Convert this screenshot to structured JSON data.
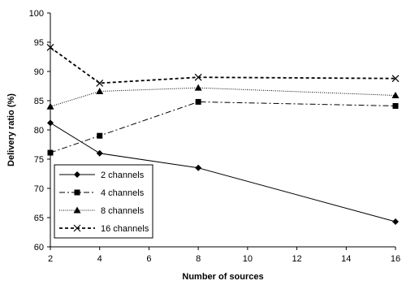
{
  "chart_data": {
    "type": "line",
    "title": "",
    "xlabel": "Number of sources",
    "ylabel": "Delivery ratio (%)",
    "xlim": [
      2,
      16
    ],
    "ylim": [
      60,
      100
    ],
    "x_ticks": [
      "2",
      "4",
      "6",
      "8",
      "10",
      "12",
      "14",
      "16"
    ],
    "y_ticks": [
      "60",
      "65",
      "70",
      "75",
      "80",
      "85",
      "90",
      "95",
      "100"
    ],
    "grid": false,
    "legend_position": "lower-left",
    "x": [
      2,
      4,
      8,
      16
    ],
    "series": [
      {
        "name": "2 channels",
        "values": [
          81.2,
          76.0,
          73.5,
          64.3
        ],
        "marker": "diamond",
        "line_style": "solid",
        "color": "#000000"
      },
      {
        "name": "4 channels",
        "values": [
          76.1,
          79.0,
          84.8,
          84.1
        ],
        "marker": "square",
        "line_style": "dashdot",
        "color": "#000000"
      },
      {
        "name": "8 channels",
        "values": [
          84.0,
          86.6,
          87.2,
          85.9
        ],
        "marker": "triangle",
        "line_style": "dotted",
        "color": "#000000"
      },
      {
        "name": "16 channels",
        "values": [
          94.1,
          88.0,
          89.0,
          88.8
        ],
        "marker": "x",
        "line_style": "dashed",
        "color": "#000000"
      }
    ]
  }
}
